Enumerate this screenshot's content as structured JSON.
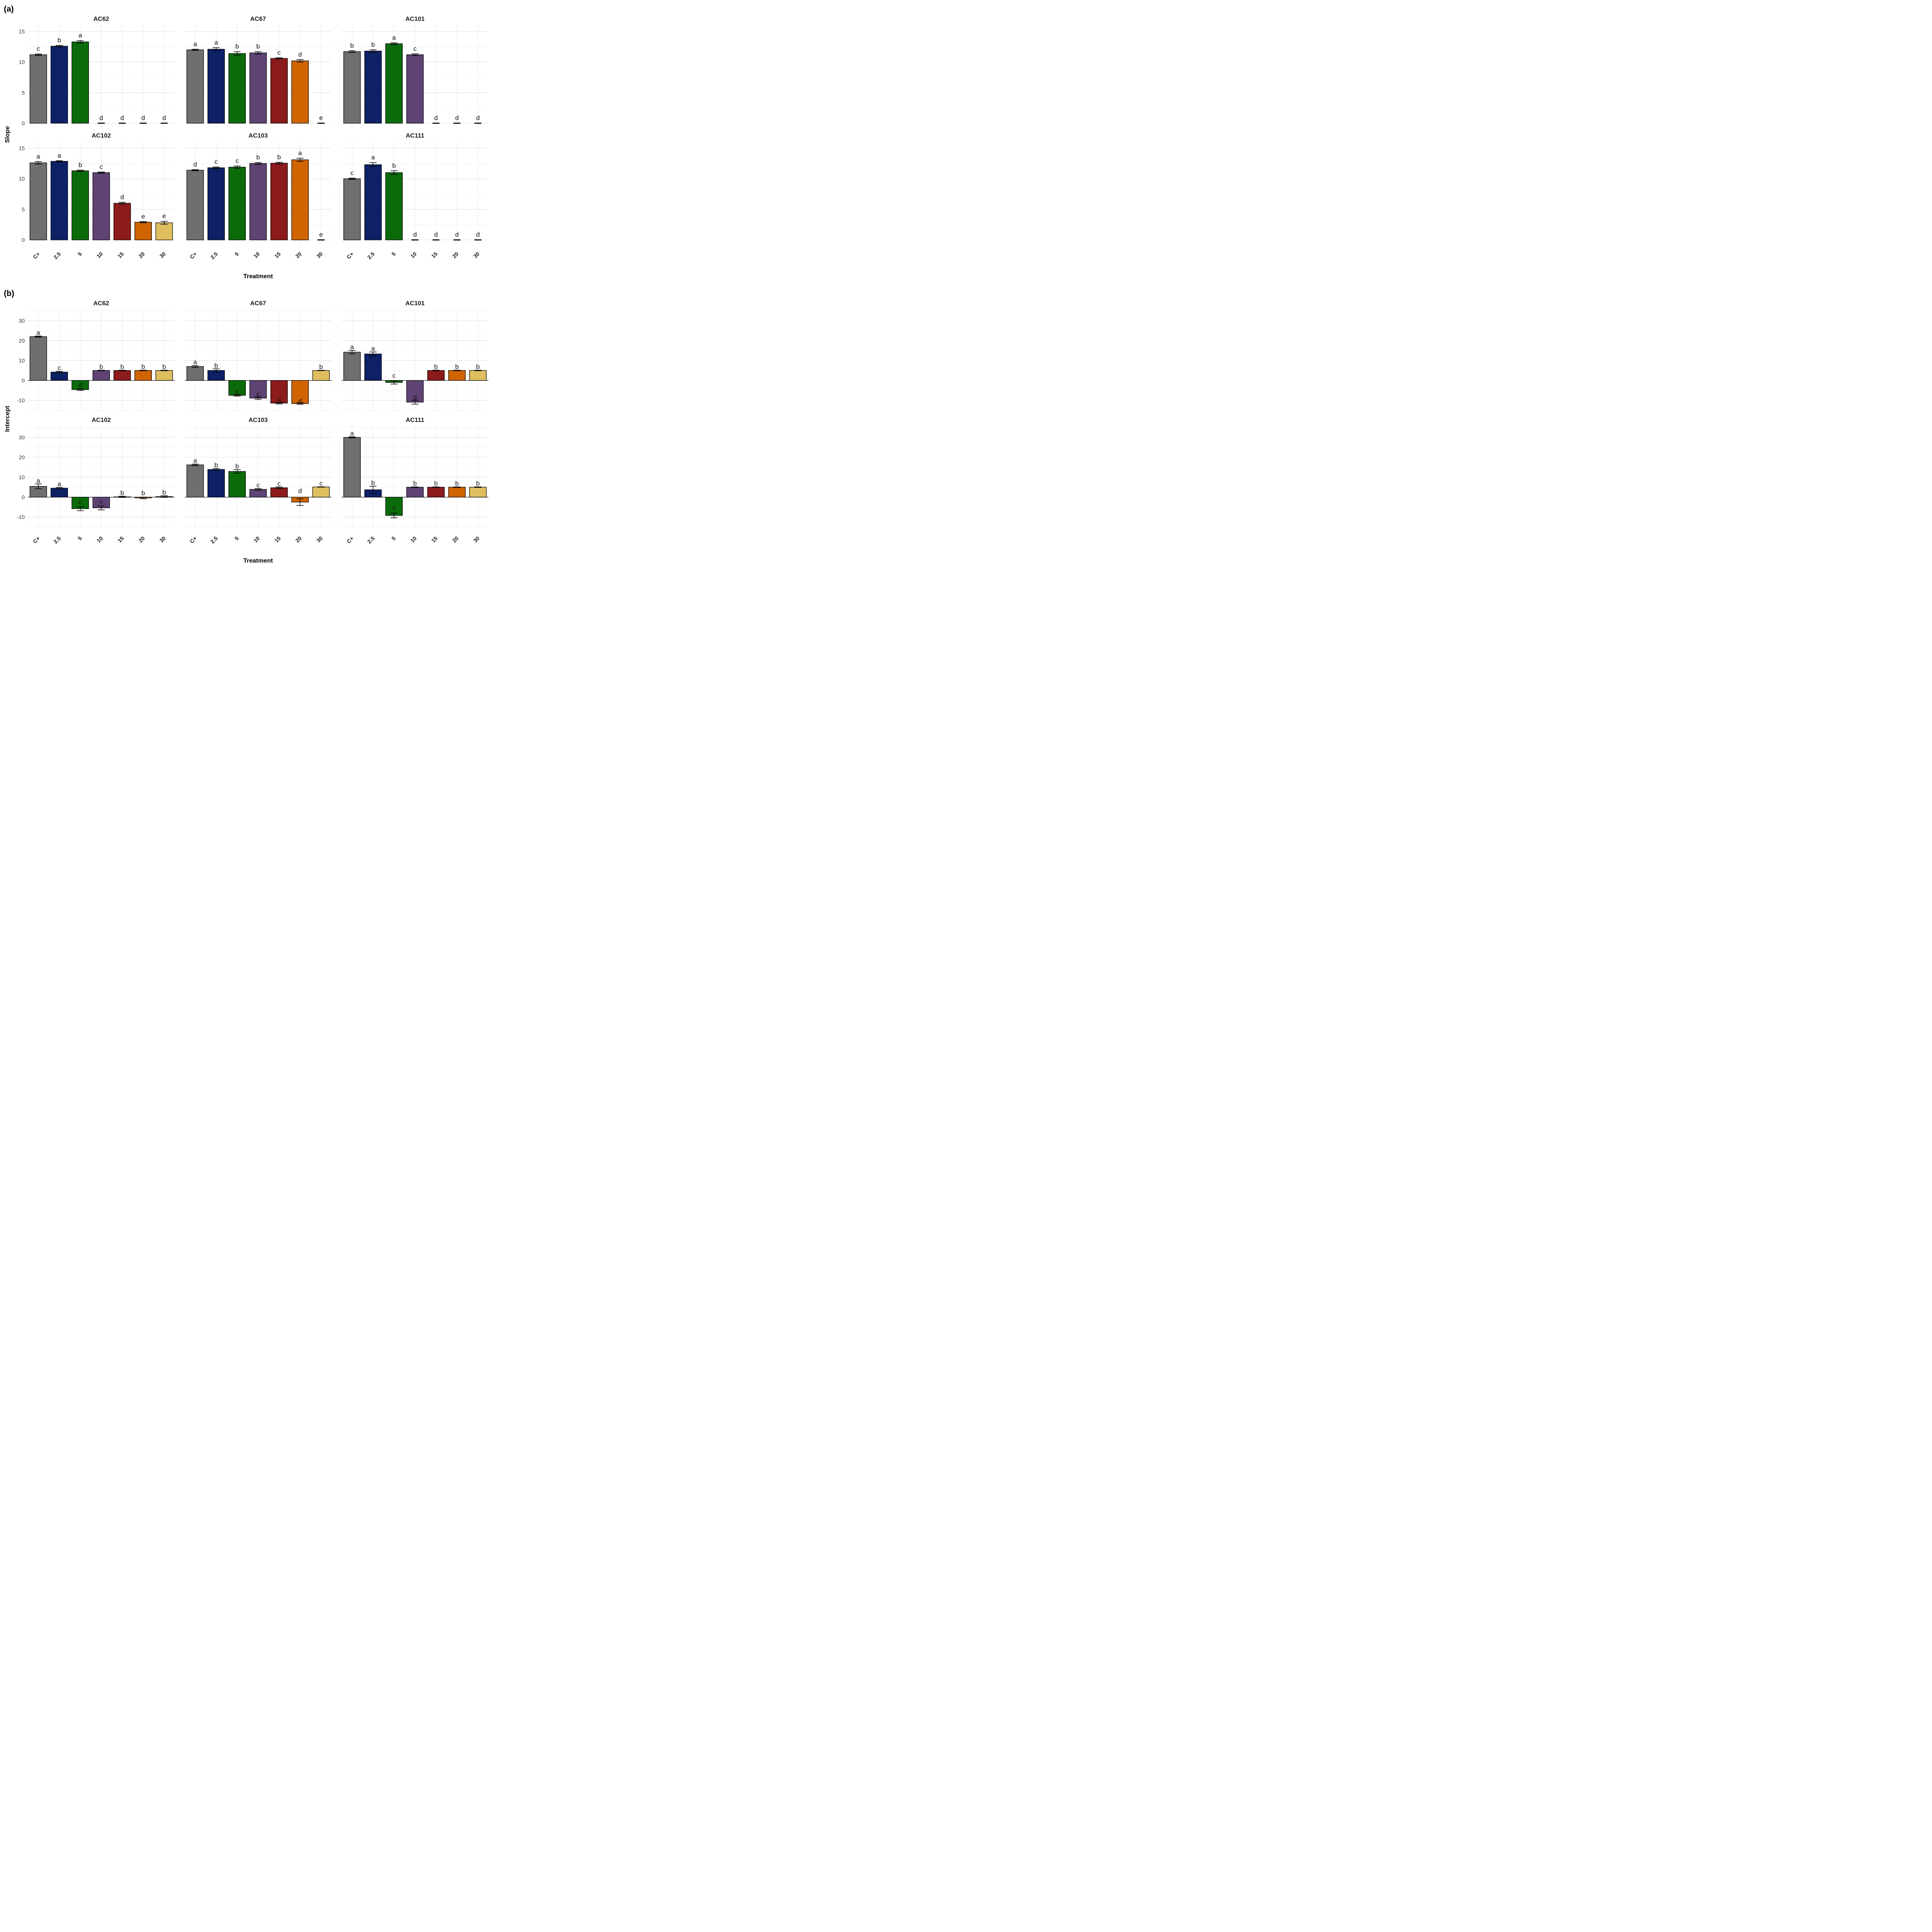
{
  "figure_title": "",
  "style": {
    "background": "#ffffff",
    "grid_major": "#e2e2e2",
    "grid_minor": "#efefef",
    "grid_vertical": "#e9e9e9",
    "bar_stroke": "#000000",
    "zero_line": "#000000"
  },
  "chart_data": {
    "type": "bar",
    "categories": [
      "C+",
      "2.5",
      "5",
      "10",
      "15",
      "20",
      "30"
    ],
    "bar_colors": [
      "#6F6F6F",
      "#0E2167",
      "#0B6B0B",
      "#5E4374",
      "#8C1B1B",
      "#D06400",
      "#DFBE5F"
    ],
    "xlabel": "Treatment",
    "panels": [
      {
        "id": "a",
        "label": "(a)",
        "ylabel": "Slope",
        "yticks": [
          0,
          5,
          10,
          15
        ],
        "minor_ticks": [
          2.5,
          7.5,
          12.5
        ],
        "ylim": [
          -0.7,
          16.1
        ],
        "letter_pad": 0.85,
        "zero_line": false,
        "facets": [
          {
            "title": "AC62",
            "values": [
              11.2,
              12.6,
              13.3,
              0,
              0,
              0,
              0
            ],
            "errors": [
              0.12,
              0.12,
              0.2,
              0.04,
              0.04,
              0.04,
              0.04
            ],
            "letters": [
              "c",
              "b",
              "a",
              "d",
              "d",
              "d",
              "d"
            ],
            "letter_y": {}
          },
          {
            "title": "AC67",
            "values": [
              12.0,
              12.1,
              11.4,
              11.5,
              10.6,
              10.2,
              0
            ],
            "errors": [
              0.1,
              0.25,
              0.3,
              0.2,
              0.1,
              0.2,
              0.04
            ],
            "letters": [
              "a",
              "a",
              "b",
              "b",
              "c",
              "d",
              "e"
            ],
            "letter_y": {}
          },
          {
            "title": "AC101",
            "values": [
              11.7,
              11.8,
              13.0,
              11.2,
              0,
              0,
              0
            ],
            "errors": [
              0.15,
              0.2,
              0.15,
              0.15,
              0.04,
              0.04,
              0.04
            ],
            "letters": [
              "b",
              "b",
              "a",
              "c",
              "d",
              "d",
              "d"
            ],
            "letter_y": {}
          },
          {
            "title": "AC102",
            "values": [
              12.6,
              12.85,
              11.3,
              11.0,
              6.0,
              2.9,
              2.8
            ],
            "errors": [
              0.2,
              0.1,
              0.1,
              0.1,
              0.15,
              0.1,
              0.25
            ],
            "letters": [
              "a",
              "a",
              "b",
              "c",
              "d",
              "e",
              "e"
            ],
            "letter_y": {}
          },
          {
            "title": "AC103",
            "values": [
              11.4,
              11.8,
              11.9,
              12.5,
              12.55,
              13.1,
              0
            ],
            "errors": [
              0.1,
              0.12,
              0.18,
              0.15,
              0.15,
              0.25,
              0.04
            ],
            "letters": [
              "d",
              "c",
              "c",
              "b",
              "b",
              "a",
              "e"
            ],
            "letter_y": {}
          },
          {
            "title": "AC111",
            "values": [
              10.0,
              12.3,
              11.0,
              0,
              0,
              0,
              0
            ],
            "errors": [
              0.1,
              0.35,
              0.3,
              0.04,
              0.04,
              0.04,
              0.04
            ],
            "letters": [
              "c",
              "a",
              "b",
              "d",
              "d",
              "d",
              "d"
            ],
            "letter_y": {}
          }
        ]
      },
      {
        "id": "b",
        "label": "(b)",
        "ylabel": "Intercept",
        "yticks": [
          -10,
          0,
          10,
          20,
          30
        ],
        "minor_ticks": [
          -15,
          -5,
          5,
          15,
          25,
          35
        ],
        "ylim": [
          -15.8,
          35.8
        ],
        "letter_pad": 1.7,
        "zero_line": true,
        "facets": [
          {
            "title": "AC62",
            "values": [
              22.0,
              4.2,
              -4.6,
              5.0,
              5.0,
              5.0,
              5.0
            ],
            "errors": [
              0.3,
              0.4,
              0.4,
              0.15,
              0.15,
              0.15,
              0.15
            ],
            "letters": [
              "a",
              "c",
              "d",
              "b",
              "b",
              "b",
              "b"
            ],
            "letter_y": {
              "2": -2.2
            }
          },
          {
            "title": "AC67",
            "values": [
              7.0,
              5.0,
              -7.5,
              -8.9,
              -11.4,
              -11.6,
              5.0
            ],
            "errors": [
              0.5,
              0.8,
              0.4,
              0.6,
              0.4,
              0.4,
              0.1
            ],
            "letters": [
              "a",
              "b",
              "c",
              "c",
              "d",
              "d",
              "b"
            ],
            "letter_y": {
              "2": -5.7,
              "3": -6.8,
              "4": -10.2,
              "5": -10.4
            }
          },
          {
            "title": "AC101",
            "values": [
              14.2,
              13.3,
              -1.0,
              -10.9,
              5.0,
              5.0,
              5.0
            ],
            "errors": [
              0.9,
              1.0,
              0.8,
              1.0,
              0.15,
              0.15,
              0.15
            ],
            "letters": [
              "a",
              "a",
              "c",
              "d",
              "b",
              "b",
              "b"
            ],
            "letter_y": {
              "2": 2.4,
              "3": -8.5
            }
          },
          {
            "title": "AC102",
            "values": [
              5.4,
              4.5,
              -5.8,
              -5.4,
              0.15,
              -0.4,
              0.3
            ],
            "errors": [
              1.2,
              0.4,
              1.0,
              1.0,
              0.3,
              0.4,
              0.4
            ],
            "letters": [
              "a",
              "a",
              "c",
              "c",
              "b",
              "b",
              "b"
            ],
            "letter_y": {
              "2": -2.5,
              "3": -2.1,
              "5": 2.0
            }
          },
          {
            "title": "AC103",
            "values": [
              16.2,
              13.9,
              12.9,
              3.9,
              4.7,
              -2.5,
              5.1
            ],
            "errors": [
              0.4,
              0.5,
              0.9,
              0.4,
              0.4,
              1.7,
              0.1
            ],
            "letters": [
              "a",
              "b",
              "b",
              "c",
              "c",
              "d",
              "c"
            ],
            "letter_y": {
              "5": 3.1
            }
          },
          {
            "title": "AC111",
            "values": [
              30.0,
              3.7,
              -9.2,
              5.0,
              5.0,
              5.0,
              5.0
            ],
            "errors": [
              0.3,
              1.8,
              1.2,
              0.15,
              0.15,
              0.15,
              0.15
            ],
            "letters": [
              "a",
              "b",
              "c",
              "b",
              "b",
              "b",
              "b"
            ],
            "letter_y": {
              "2": -5.4
            }
          }
        ]
      }
    ]
  }
}
